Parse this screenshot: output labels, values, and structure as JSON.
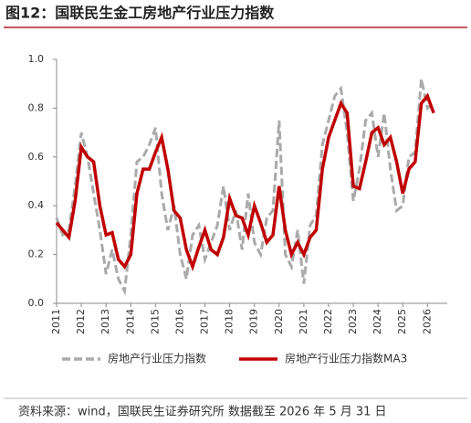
{
  "chart_data": {
    "type": "line",
    "title": "图12：国联民生金工房地产行业压力指数",
    "source": "资料来源：wind，国联民生证券研究所  数据截至 2026 年 5 月 31 日",
    "x": [
      2011,
      2011.25,
      2011.5,
      2011.75,
      2012,
      2012.25,
      2012.5,
      2012.75,
      2013,
      2013.25,
      2013.5,
      2013.75,
      2014,
      2014.25,
      2014.5,
      2014.75,
      2015,
      2015.25,
      2015.5,
      2015.75,
      2016,
      2016.25,
      2016.5,
      2016.75,
      2017,
      2017.25,
      2017.5,
      2017.75,
      2018,
      2018.25,
      2018.5,
      2018.75,
      2019,
      2019.25,
      2019.5,
      2019.75,
      2020,
      2020.25,
      2020.5,
      2020.75,
      2021,
      2021.25,
      2021.5,
      2021.75,
      2022,
      2022.25,
      2022.5,
      2022.75,
      2023,
      2023.25,
      2023.5,
      2023.75,
      2024,
      2024.25,
      2024.5,
      2024.75,
      2025,
      2025.25,
      2025.5,
      2025.75,
      2026,
      2026.25
    ],
    "series": [
      {
        "name": "房地产行业压力指数",
        "color": "#aaaaaa",
        "dashed": true,
        "values": [
          0.35,
          0.28,
          0.3,
          0.48,
          0.7,
          0.6,
          0.45,
          0.3,
          0.12,
          0.22,
          0.1,
          0.05,
          0.28,
          0.58,
          0.6,
          0.65,
          0.72,
          0.45,
          0.3,
          0.4,
          0.2,
          0.1,
          0.28,
          0.32,
          0.18,
          0.25,
          0.32,
          0.48,
          0.3,
          0.38,
          0.22,
          0.45,
          0.25,
          0.2,
          0.35,
          0.38,
          0.75,
          0.2,
          0.15,
          0.3,
          0.08,
          0.32,
          0.36,
          0.65,
          0.75,
          0.85,
          0.88,
          0.7,
          0.42,
          0.55,
          0.75,
          0.78,
          0.6,
          0.78,
          0.55,
          0.38,
          0.4,
          0.6,
          0.62,
          0.92,
          0.8,
          0.82
        ]
      },
      {
        "name": "房地产行业压力指数MA3",
        "color": "#c00000",
        "dashed": false,
        "values": [
          0.33,
          0.3,
          0.27,
          0.42,
          0.64,
          0.6,
          0.58,
          0.4,
          0.28,
          0.29,
          0.18,
          0.15,
          0.2,
          0.45,
          0.55,
          0.55,
          0.62,
          0.68,
          0.55,
          0.38,
          0.35,
          0.22,
          0.15,
          0.23,
          0.3,
          0.22,
          0.2,
          0.27,
          0.43,
          0.36,
          0.35,
          0.28,
          0.4,
          0.33,
          0.25,
          0.28,
          0.48,
          0.3,
          0.2,
          0.25,
          0.2,
          0.27,
          0.3,
          0.55,
          0.68,
          0.75,
          0.82,
          0.78,
          0.48,
          0.47,
          0.58,
          0.7,
          0.72,
          0.65,
          0.68,
          0.58,
          0.45,
          0.55,
          0.58,
          0.82,
          0.85,
          0.78
        ]
      }
    ],
    "xlim": [
      2011,
      2026.8
    ],
    "xticks": [
      2011,
      2012,
      2013,
      2014,
      2015,
      2016,
      2017,
      2018,
      2019,
      2020,
      2021,
      2022,
      2023,
      2024,
      2025,
      2026
    ],
    "ylim": [
      0,
      1
    ],
    "yticks": [
      {
        "value": 0,
        "label": "0.0"
      },
      0.2,
      0.4,
      0.6,
      0.8,
      {
        "value": 1,
        "label": "1.0"
      }
    ],
    "grid": false
  }
}
